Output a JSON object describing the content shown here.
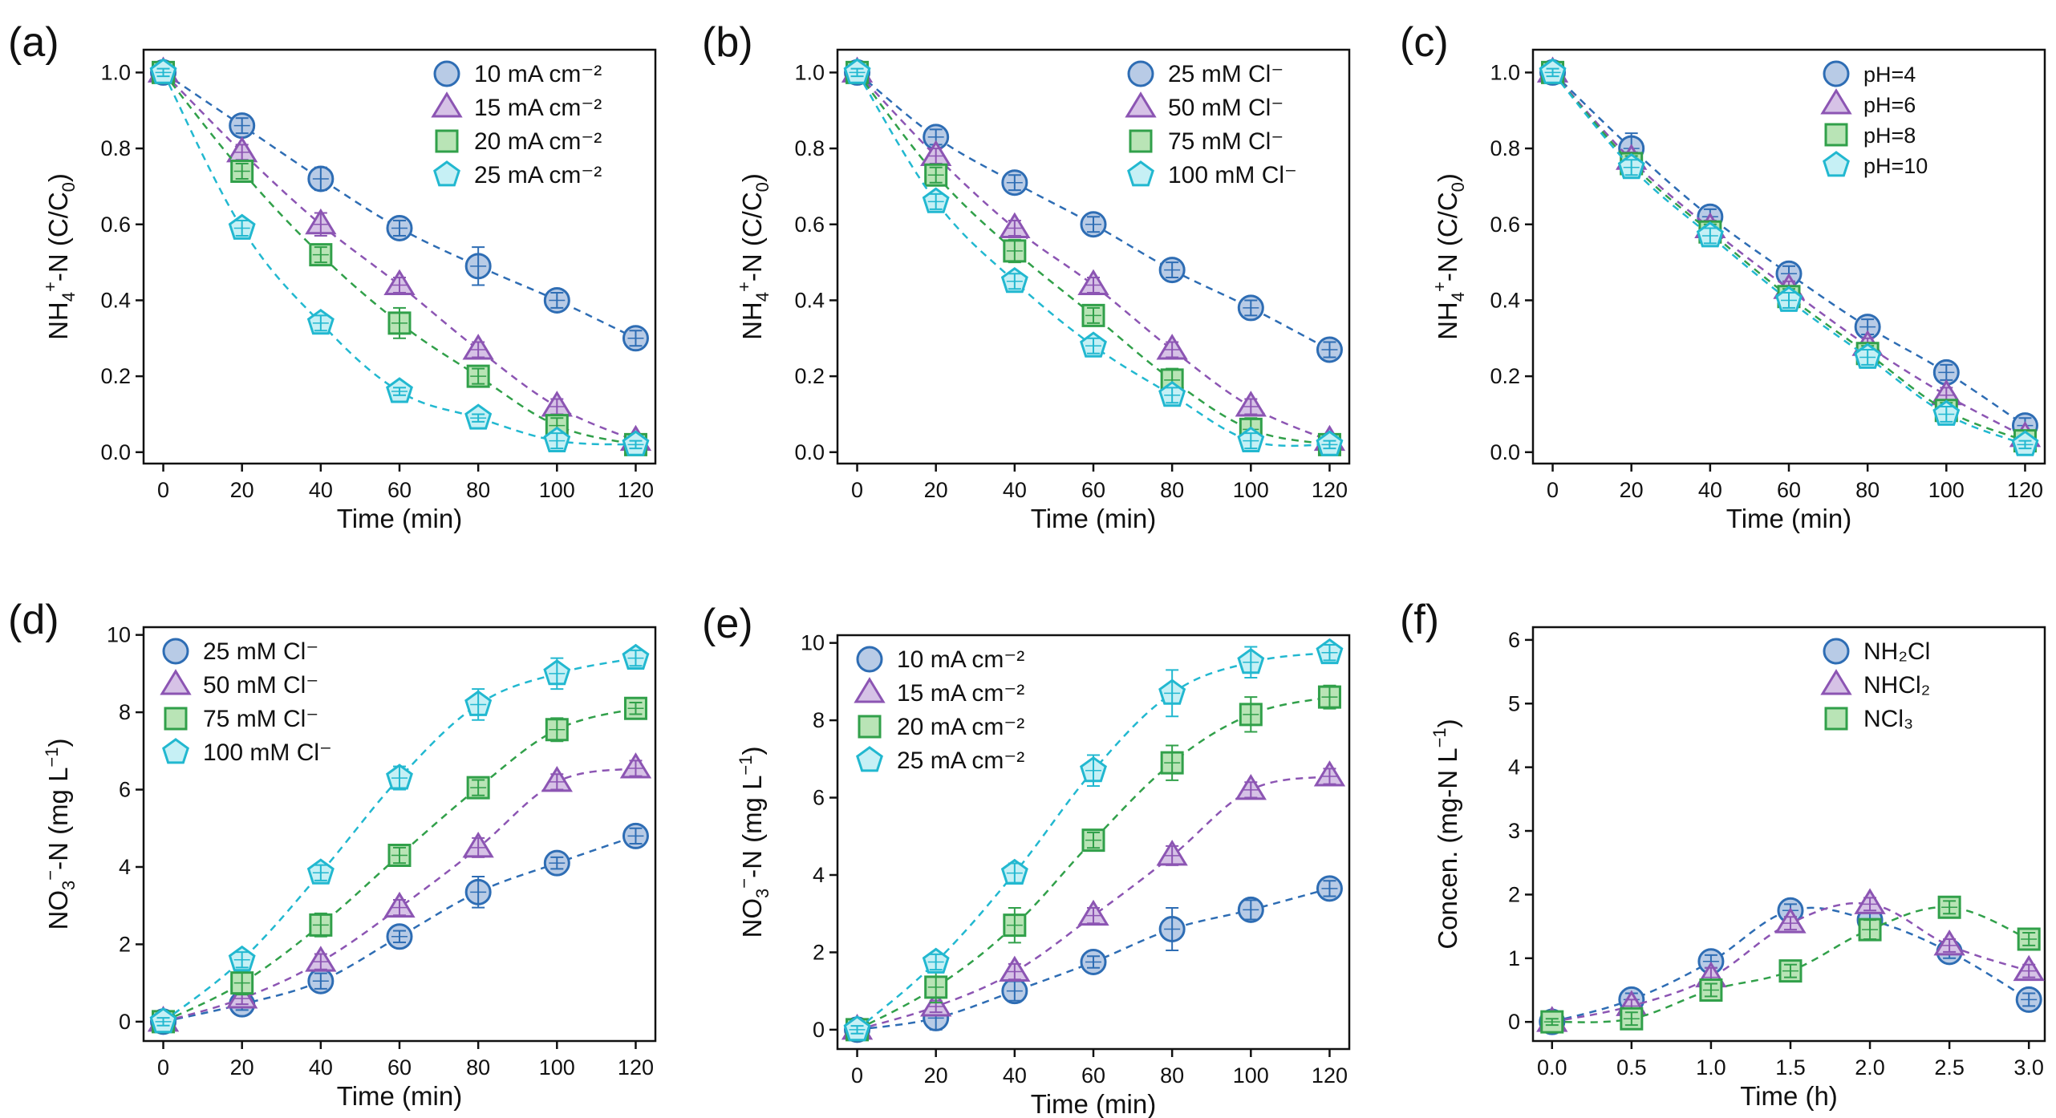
{
  "chart_data": [
    {
      "panel_label": "(a)",
      "type": "scatter",
      "ylabel_main": "NH",
      "ylabel_sub": "4",
      "ylabel_sup": "+",
      "ylabel_tail": "-N (C/C",
      "ylabel_sub2": "0",
      "ylabel_end": ")",
      "xlabel": "Time (min)",
      "xlim": [
        -5,
        125
      ],
      "ylim": [
        -0.03,
        1.06
      ],
      "xticks": [
        0,
        20,
        40,
        60,
        80,
        100,
        120
      ],
      "xtick_labels": [
        "0",
        "20",
        "40",
        "60",
        "80",
        "100",
        "120"
      ],
      "yticks": [
        0,
        0.2,
        0.4,
        0.6,
        0.8,
        1.0
      ],
      "ytick_labels": [
        "0.0",
        "0.2",
        "0.4",
        "0.6",
        "0.8",
        "1.0"
      ],
      "legend_position": "top-right",
      "x": [
        0,
        20,
        40,
        60,
        80,
        100,
        120
      ],
      "series": [
        {
          "name": "10 mA cm⁻²",
          "marker": "circle",
          "values": [
            1.0,
            0.86,
            0.72,
            0.59,
            0.49,
            0.4,
            0.3
          ],
          "err": [
            0.01,
            0.02,
            0.03,
            0.02,
            0.05,
            0.02,
            0.02
          ]
        },
        {
          "name": "15 mA cm⁻²",
          "marker": "triangle",
          "values": [
            1.0,
            0.79,
            0.6,
            0.44,
            0.27,
            0.12,
            0.03
          ],
          "err": [
            0.01,
            0.02,
            0.03,
            0.02,
            0.02,
            0.02,
            0.01
          ]
        },
        {
          "name": "20 mA cm⁻²",
          "marker": "square",
          "values": [
            1.0,
            0.74,
            0.52,
            0.34,
            0.2,
            0.07,
            0.02
          ],
          "err": [
            0.01,
            0.02,
            0.02,
            0.04,
            0.02,
            0.02,
            0.01
          ]
        },
        {
          "name": "25 mA cm⁻²",
          "marker": "pentagon",
          "values": [
            1.0,
            0.59,
            0.34,
            0.16,
            0.09,
            0.03,
            0.02
          ],
          "err": [
            0.01,
            0.02,
            0.02,
            0.01,
            0.01,
            0.02,
            0.01
          ]
        }
      ]
    },
    {
      "panel_label": "(b)",
      "type": "scatter",
      "ylabel_main": "NH",
      "ylabel_sub": "4",
      "ylabel_sup": "+",
      "ylabel_tail": "-N (C/C",
      "ylabel_sub2": "0",
      "ylabel_end": ")",
      "xlabel": "Time (min)",
      "xlim": [
        -5,
        125
      ],
      "ylim": [
        -0.03,
        1.06
      ],
      "xticks": [
        0,
        20,
        40,
        60,
        80,
        100,
        120
      ],
      "xtick_labels": [
        "0",
        "20",
        "40",
        "60",
        "80",
        "100",
        "120"
      ],
      "yticks": [
        0,
        0.2,
        0.4,
        0.6,
        0.8,
        1.0
      ],
      "ytick_labels": [
        "0.0",
        "0.2",
        "0.4",
        "0.6",
        "0.8",
        "1.0"
      ],
      "legend_position": "top-right",
      "x": [
        0,
        20,
        40,
        60,
        80,
        100,
        120
      ],
      "series": [
        {
          "name": "25 mM Cl⁻",
          "marker": "circle",
          "values": [
            1.0,
            0.83,
            0.71,
            0.6,
            0.48,
            0.38,
            0.27
          ],
          "err": [
            0.01,
            0.02,
            0.02,
            0.02,
            0.02,
            0.02,
            0.02
          ]
        },
        {
          "name": "50 mM Cl⁻",
          "marker": "triangle",
          "values": [
            1.0,
            0.78,
            0.59,
            0.44,
            0.27,
            0.12,
            0.03
          ],
          "err": [
            0.01,
            0.02,
            0.02,
            0.02,
            0.02,
            0.02,
            0.01
          ]
        },
        {
          "name": "75 mM Cl⁻",
          "marker": "square",
          "values": [
            1.0,
            0.73,
            0.53,
            0.36,
            0.19,
            0.06,
            0.02
          ],
          "err": [
            0.01,
            0.02,
            0.03,
            0.02,
            0.03,
            0.03,
            0.01
          ]
        },
        {
          "name": "100 mM Cl⁻",
          "marker": "pentagon",
          "values": [
            1.0,
            0.66,
            0.45,
            0.28,
            0.15,
            0.03,
            0.02
          ],
          "err": [
            0.01,
            0.02,
            0.02,
            0.02,
            0.02,
            0.02,
            0.01
          ]
        }
      ]
    },
    {
      "panel_label": "(c)",
      "type": "scatter",
      "ylabel_main": "NH",
      "ylabel_sub": "4",
      "ylabel_sup": "+",
      "ylabel_tail": "-N (C/C",
      "ylabel_sub2": "0",
      "ylabel_end": ")",
      "xlabel": "Time (min)",
      "xlim": [
        -5,
        125
      ],
      "ylim": [
        -0.03,
        1.06
      ],
      "xticks": [
        0,
        20,
        40,
        60,
        80,
        100,
        120
      ],
      "xtick_labels": [
        "0",
        "20",
        "40",
        "60",
        "80",
        "100",
        "120"
      ],
      "yticks": [
        0,
        0.2,
        0.4,
        0.6,
        0.8,
        1.0
      ],
      "ytick_labels": [
        "0.0",
        "0.2",
        "0.4",
        "0.6",
        "0.8",
        "1.0"
      ],
      "legend_position": "top-right",
      "x": [
        0,
        20,
        40,
        60,
        80,
        100,
        120
      ],
      "series": [
        {
          "name": "pH=4",
          "marker": "circle",
          "values": [
            1.0,
            0.8,
            0.62,
            0.47,
            0.33,
            0.21,
            0.07
          ],
          "err": [
            0.01,
            0.04,
            0.02,
            0.02,
            0.02,
            0.02,
            0.02
          ]
        },
        {
          "name": "pH=6",
          "marker": "triangle",
          "values": [
            1.0,
            0.77,
            0.59,
            0.43,
            0.28,
            0.15,
            0.04
          ],
          "err": [
            0.01,
            0.02,
            0.02,
            0.02,
            0.02,
            0.02,
            0.01
          ]
        },
        {
          "name": "pH=8",
          "marker": "square",
          "values": [
            1.0,
            0.76,
            0.58,
            0.41,
            0.26,
            0.11,
            0.03
          ],
          "err": [
            0.01,
            0.02,
            0.02,
            0.02,
            0.02,
            0.02,
            0.01
          ]
        },
        {
          "name": "pH=10",
          "marker": "pentagon",
          "values": [
            1.0,
            0.75,
            0.57,
            0.4,
            0.25,
            0.1,
            0.02
          ],
          "err": [
            0.01,
            0.02,
            0.02,
            0.02,
            0.02,
            0.02,
            0.01
          ]
        }
      ]
    },
    {
      "panel_label": "(d)",
      "type": "scatter",
      "ylabel_main": "NO",
      "ylabel_sub": "3",
      "ylabel_sup": "−",
      "ylabel_tail": "-N (mg L",
      "ylabel_sup2": "−1",
      "ylabel_end": ")",
      "xlabel": "Time (min)",
      "xlim": [
        -5,
        125
      ],
      "ylim": [
        -0.5,
        10.2
      ],
      "xticks": [
        0,
        20,
        40,
        60,
        80,
        100,
        120
      ],
      "xtick_labels": [
        "0",
        "20",
        "40",
        "60",
        "80",
        "100",
        "120"
      ],
      "yticks": [
        0,
        2,
        4,
        6,
        8,
        10
      ],
      "ytick_labels": [
        "0",
        "2",
        "4",
        "6",
        "8",
        "10"
      ],
      "legend_position": "top-left",
      "x": [
        0,
        20,
        40,
        60,
        80,
        100,
        120
      ],
      "series": [
        {
          "name": "25 mM Cl⁻",
          "marker": "circle",
          "values": [
            0.0,
            0.45,
            1.05,
            2.2,
            3.35,
            4.1,
            4.8
          ],
          "err": [
            0.1,
            0.15,
            0.2,
            0.15,
            0.4,
            0.15,
            0.2
          ]
        },
        {
          "name": "50 mM Cl⁻",
          "marker": "triangle",
          "values": [
            0.0,
            0.6,
            1.55,
            2.95,
            4.5,
            6.2,
            6.55
          ],
          "err": [
            0.1,
            0.15,
            0.2,
            0.2,
            0.25,
            0.2,
            0.2
          ]
        },
        {
          "name": "75 mM Cl⁻",
          "marker": "square",
          "values": [
            0.0,
            1.0,
            2.5,
            4.3,
            6.05,
            7.55,
            8.1
          ],
          "err": [
            0.1,
            0.3,
            0.3,
            0.2,
            0.2,
            0.3,
            0.15
          ]
        },
        {
          "name": "100 mM Cl⁻",
          "marker": "pentagon",
          "values": [
            0.0,
            1.6,
            3.85,
            6.3,
            8.2,
            9.0,
            9.4
          ],
          "err": [
            0.1,
            0.2,
            0.2,
            0.3,
            0.4,
            0.4,
            0.2
          ]
        }
      ]
    },
    {
      "panel_label": "(e)",
      "type": "scatter",
      "ylabel_main": "NO",
      "ylabel_sub": "3",
      "ylabel_sup": "−",
      "ylabel_tail": "-N (mg L",
      "ylabel_sup2": "−1",
      "ylabel_end": ")",
      "xlabel": "Time (min)",
      "xlim": [
        -5,
        125
      ],
      "ylim": [
        -0.5,
        10.2
      ],
      "xticks": [
        0,
        20,
        40,
        60,
        80,
        100,
        120
      ],
      "xtick_labels": [
        "0",
        "20",
        "40",
        "60",
        "80",
        "100",
        "120"
      ],
      "yticks": [
        0,
        2,
        4,
        6,
        8,
        10
      ],
      "ytick_labels": [
        "0",
        "2",
        "4",
        "6",
        "8",
        "10"
      ],
      "legend_position": "top-left",
      "x": [
        0,
        20,
        40,
        60,
        80,
        100,
        120
      ],
      "series": [
        {
          "name": "10 mA cm⁻²",
          "marker": "circle",
          "values": [
            0.0,
            0.3,
            1.0,
            1.75,
            2.6,
            3.1,
            3.65
          ],
          "err": [
            0.1,
            0.3,
            0.25,
            0.15,
            0.55,
            0.25,
            0.2
          ]
        },
        {
          "name": "15 mA cm⁻²",
          "marker": "triangle",
          "values": [
            0.0,
            0.6,
            1.5,
            2.95,
            4.5,
            6.2,
            6.55
          ],
          "err": [
            0.1,
            0.15,
            0.2,
            0.2,
            0.25,
            0.2,
            0.2
          ]
        },
        {
          "name": "20 mA cm⁻²",
          "marker": "square",
          "values": [
            0.0,
            1.1,
            2.7,
            4.9,
            6.9,
            8.15,
            8.6
          ],
          "err": [
            0.1,
            0.4,
            0.45,
            0.2,
            0.45,
            0.45,
            0.3
          ]
        },
        {
          "name": "25 mA cm⁻²",
          "marker": "pentagon",
          "values": [
            0.0,
            1.75,
            4.05,
            6.7,
            8.7,
            9.5,
            9.75
          ],
          "err": [
            0.1,
            0.2,
            0.25,
            0.4,
            0.6,
            0.4,
            0.2
          ]
        }
      ]
    },
    {
      "panel_label": "(f)",
      "type": "scatter",
      "ylabel_main": "Concen. (mg-N L",
      "ylabel_sup": "−1",
      "ylabel_end": ")",
      "xlabel": "Time (h)",
      "xlim": [
        -0.12,
        3.1
      ],
      "ylim": [
        -0.3,
        6.2
      ],
      "xticks": [
        0,
        0.5,
        1.0,
        1.5,
        2.0,
        2.5,
        3.0
      ],
      "xtick_labels": [
        "0.0",
        "0.5",
        "1.0",
        "1.5",
        "2.0",
        "2.5",
        "3.0"
      ],
      "yticks": [
        0,
        1,
        2,
        3,
        4,
        5,
        6
      ],
      "ytick_labels": [
        "0",
        "1",
        "2",
        "3",
        "4",
        "5",
        "6"
      ],
      "legend_position": "top-right",
      "x": [
        0,
        0.5,
        1.0,
        1.5,
        2.0,
        2.5,
        3.0
      ],
      "series": [
        {
          "name": "NH₂Cl",
          "marker": "circle",
          "values": [
            0.0,
            0.35,
            0.95,
            1.75,
            1.6,
            1.1,
            0.35
          ],
          "err": [
            0.05,
            0.1,
            0.1,
            0.1,
            0.15,
            0.1,
            0.1
          ]
        },
        {
          "name": "NHCl₂",
          "marker": "triangle",
          "values": [
            0.0,
            0.25,
            0.7,
            1.55,
            1.85,
            1.2,
            0.8
          ],
          "err": [
            0.05,
            0.1,
            0.15,
            0.1,
            0.1,
            0.1,
            0.1
          ]
        },
        {
          "name": "NCl₃",
          "marker": "square",
          "values": [
            0.0,
            0.05,
            0.5,
            0.8,
            1.45,
            1.8,
            1.3
          ],
          "err": [
            0.05,
            0.1,
            0.1,
            0.1,
            0.15,
            0.1,
            0.1
          ]
        }
      ]
    }
  ],
  "colors": {
    "series": [
      {
        "fill": "#b8cbe6",
        "stroke": "#2e6db4"
      },
      {
        "fill": "#d6c2e6",
        "stroke": "#8c55b3"
      },
      {
        "fill": "#b9e4b6",
        "stroke": "#31a04a"
      },
      {
        "fill": "#c6f0f5",
        "stroke": "#22b8d0"
      }
    ]
  }
}
